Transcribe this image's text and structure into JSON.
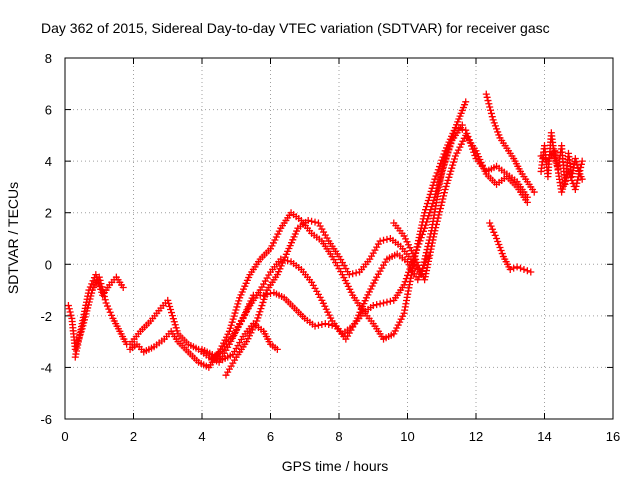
{
  "chart_data": {
    "type": "scatter",
    "title": "Day 362 of 2015, Sidereal Day-to-day VTEC variation (SDTVAR) for receiver gasc",
    "xlabel": "GPS time / hours",
    "ylabel": "SDTVAR / TECUs",
    "xlim": [
      0,
      16
    ],
    "ylim": [
      -6,
      8
    ],
    "x_ticks": [
      0,
      2,
      4,
      6,
      8,
      10,
      12,
      14,
      16
    ],
    "y_ticks": [
      -6,
      -4,
      -2,
      0,
      2,
      4,
      6,
      8
    ],
    "x_tick_labels": [
      "0",
      "2",
      "4",
      "6",
      "8",
      "10",
      "12",
      "14",
      "16"
    ],
    "y_tick_labels": [
      "-6",
      "-4",
      "-2",
      "0",
      "2",
      "4",
      "6",
      "8"
    ],
    "grid": true,
    "marker": "plus",
    "series_color": "#ff0000",
    "series": [
      {
        "x": [
          0.1,
          0.2,
          0.3,
          0.5,
          0.8,
          1.0,
          1.2,
          1.4,
          1.6,
          1.8
        ],
        "y": [
          -1.6,
          -2.1,
          -3.3,
          -2.5,
          -1.0,
          -0.5,
          -1.5,
          -2.1,
          -2.6,
          -3.1
        ]
      },
      {
        "x": [
          0.3,
          0.5,
          0.7,
          0.9,
          1.1,
          1.3,
          1.5,
          1.7
        ],
        "y": [
          -3.6,
          -2.3,
          -1.0,
          -0.4,
          -1.2,
          -0.8,
          -0.5,
          -0.9
        ]
      },
      {
        "x": [
          1.9,
          2.1,
          2.3,
          2.6,
          2.9,
          3.1,
          3.3,
          3.6,
          3.9,
          4.2,
          4.5,
          4.8,
          5.1,
          5.4,
          5.7,
          6.0,
          6.3,
          6.6,
          6.9,
          7.2,
          7.5,
          7.8,
          8.1,
          8.4,
          8.7,
          9.0,
          9.3,
          9.6,
          9.9,
          10.2,
          10.5,
          10.8,
          11.1,
          11.4,
          11.7,
          12.0,
          12.3,
          12.6,
          12.9,
          13.2,
          13.5
        ],
        "y": [
          -3.3,
          -3.1,
          -3.4,
          -3.2,
          -2.9,
          -2.6,
          -3.0,
          -3.4,
          -3.8,
          -4.0,
          -3.4,
          -2.6,
          -1.3,
          -0.4,
          0.2,
          0.6,
          1.4,
          2.0,
          1.7,
          1.2,
          0.9,
          0.3,
          -0.4,
          -1.2,
          -1.8,
          -2.3,
          -2.9,
          -2.7,
          -1.9,
          0.2,
          2.0,
          3.3,
          4.4,
          5.3,
          5.2,
          4.1,
          3.6,
          3.8,
          3.5,
          3.2,
          2.6
        ]
      },
      {
        "x": [
          1.9,
          2.2,
          2.5,
          2.8,
          3.0,
          3.3,
          3.6,
          3.9,
          4.2,
          4.5,
          4.8,
          5.1,
          5.4,
          5.7,
          6.0,
          6.3,
          6.6,
          6.9,
          7.2,
          7.5,
          7.8,
          8.1,
          8.4,
          8.7,
          9.0,
          9.3,
          9.6,
          9.9,
          10.2,
          10.5,
          10.8,
          11.1,
          11.4,
          11.7
        ],
        "y": [
          -3.1,
          -2.6,
          -2.2,
          -1.7,
          -1.4,
          -2.7,
          -3.1,
          -3.3,
          -3.6,
          -3.8,
          -3.1,
          -2.3,
          -1.6,
          -1.0,
          -0.3,
          0.2,
          0.1,
          -0.2,
          -0.7,
          -1.4,
          -2.2,
          -2.7,
          -2.4,
          -1.9,
          -1.6,
          -1.5,
          -1.4,
          -0.8,
          0.3,
          1.4,
          2.6,
          4.0,
          5.3,
          6.3
        ]
      },
      {
        "x": [
          4.7,
          5.0,
          5.3,
          5.6,
          5.9,
          6.2,
          6.5,
          6.8,
          7.1,
          7.4,
          7.7,
          8.0,
          8.3,
          8.6,
          8.9,
          9.2,
          9.5,
          9.8,
          10.1,
          10.4,
          10.7,
          11.0,
          11.3,
          11.6
        ],
        "y": [
          -4.3,
          -3.6,
          -3.0,
          -2.2,
          -1.0,
          -0.4,
          0.5,
          1.4,
          1.7,
          1.6,
          0.9,
          0.3,
          -0.4,
          -0.3,
          0.2,
          0.9,
          1.0,
          0.7,
          0.2,
          -0.4,
          1.3,
          3.6,
          4.8,
          5.4
        ]
      },
      {
        "x": [
          4.3,
          4.6,
          4.9,
          5.2,
          5.5,
          5.8,
          6.1,
          6.4,
          6.7,
          7.0,
          7.3,
          7.6,
          7.9,
          8.2,
          8.5,
          8.8,
          9.1,
          9.4,
          9.7,
          10.0,
          10.3,
          10.6
        ],
        "y": [
          -3.7,
          -3.3,
          -2.8,
          -2.1,
          -1.2,
          -1.2,
          -1.1,
          -1.3,
          -1.7,
          -2.1,
          -2.4,
          -2.3,
          -2.4,
          -2.9,
          -2.2,
          -1.3,
          -0.5,
          0.2,
          0.4,
          0.1,
          -0.6,
          0.3
        ]
      },
      {
        "x": [
          4.0,
          4.3,
          4.6,
          4.9,
          5.2,
          5.5,
          5.8,
          6.0,
          6.2
        ],
        "y": [
          -3.3,
          -3.5,
          -3.7,
          -3.5,
          -2.8,
          -2.3,
          -2.6,
          -3.1,
          -3.3
        ]
      },
      {
        "x": [
          9.6,
          9.9,
          10.2,
          10.5,
          10.8,
          11.1,
          11.4,
          11.7,
          12.0,
          12.3,
          12.6,
          12.9,
          13.2,
          13.5
        ],
        "y": [
          1.6,
          1.1,
          0.3,
          -0.6,
          1.3,
          2.9,
          4.2,
          5.0,
          4.4,
          3.5,
          3.1,
          3.4,
          3.0,
          2.4
        ]
      },
      {
        "x": [
          12.4,
          12.6,
          12.8,
          13.0,
          13.2,
          13.4,
          13.6
        ],
        "y": [
          1.6,
          1.0,
          0.3,
          -0.2,
          -0.1,
          -0.2,
          -0.3
        ]
      },
      {
        "x": [
          12.3,
          12.5,
          12.7,
          12.9,
          13.1,
          13.3,
          13.5,
          13.7
        ],
        "y": [
          6.6,
          5.6,
          4.9,
          4.5,
          4.1,
          3.6,
          3.2,
          2.8
        ]
      },
      {
        "x": [
          13.9,
          14.0,
          14.1,
          14.2,
          14.3,
          14.4,
          14.5,
          14.6,
          14.7,
          14.8,
          14.9,
          15.0,
          15.1
        ],
        "y": [
          3.6,
          4.6,
          3.4,
          5.1,
          4.1,
          3.7,
          4.6,
          3.1,
          4.3,
          3.4,
          4.1,
          3.6,
          3.3
        ]
      },
      {
        "x": [
          13.9,
          14.1,
          14.3,
          14.5,
          14.7,
          14.9,
          15.1
        ],
        "y": [
          4.2,
          4.0,
          4.4,
          2.8,
          3.6,
          2.9,
          4.0
        ]
      }
    ]
  }
}
